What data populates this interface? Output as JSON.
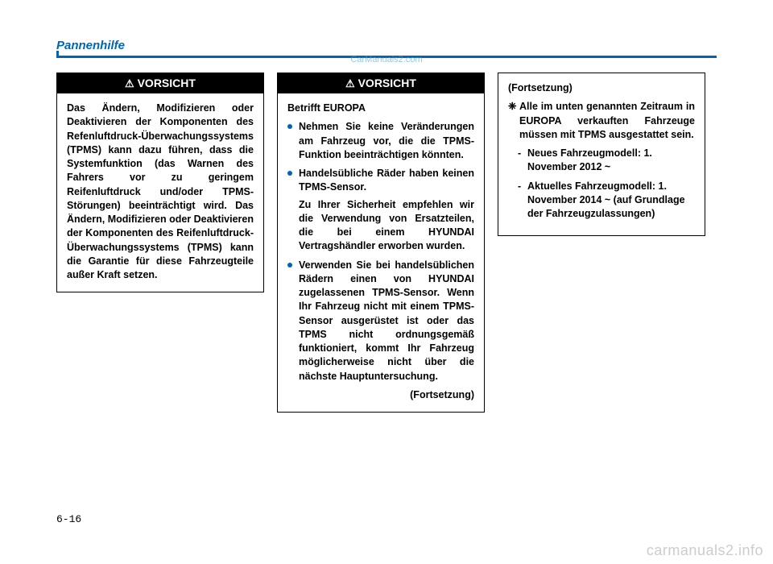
{
  "header": "Pannenhilfe",
  "watermark_top": "CarManuals2.com",
  "page_number": "6-16",
  "footer_watermark": "carmanuals2.info",
  "col1": {
    "title": "VORSICHT",
    "body": "Das Ändern, Modifizieren oder Deaktivieren der Komponenten des Refenluftdruck-Über­wachungssystems (TPMS) kann dazu führen, dass die System­funktion (das Warnen des Fahrers vor zu geringem Reifenluftdruck und/oder TPMS-Störungen) beeinträchtigt wird. Das Ändern, Modifizieren oder Deaktivieren der Komponenten des Reifenluftdruck-Über­wachungssystems (TPMS) kann die Garantie für diese Fahr­zeugteile außer Kraft setzen."
  },
  "col2": {
    "title": "VORSICHT",
    "intro": "Betrifft EUROPA",
    "b1_main": "Nehmen Sie keine Ver­änderungen am Fahrzeug vor, die die TPMS-Funktion beeint­rächtigen könnten.",
    "b2_main": "Handelsübliche Räder haben keinen TPMS-Sensor.",
    "b2_sub": "Zu Ihrer Sicherheit empfehlen wir die Verwendung von Ersatzteilen, die bei einem HYUNDAI Vertragshändler erworben wurden.",
    "b3_main": "Verwenden Sie bei handels­üblichen Rädern einen von HYUNDAI zugelassenen TPMS-Sensor. Wenn Ihr Fahrzeug nicht mit einem TPMS-Sensor ausgerüstet ist oder das TPMS nicht ord­nungsgemäß funktioniert, kommt Ihr Fahrzeug mög­licherweise nicht über die nächste Hauptuntersuchung.",
    "cont": "(Fortsetzung)"
  },
  "col3": {
    "cont_top": "(Fortsetzung)",
    "star": "Alle im unten genannten Zeitraum in EUROPA ver­kauften Fahrzeuge müssen mit TPMS ausgestattet sein.",
    "d1": "Neues Fahrzeugmodell: 1. November 2012 ~",
    "d2": "Aktuelles Fahrzeugmodell: 1. November 2014 ~ (auf Grundlage der Fahrzeug­zulassungen)"
  }
}
